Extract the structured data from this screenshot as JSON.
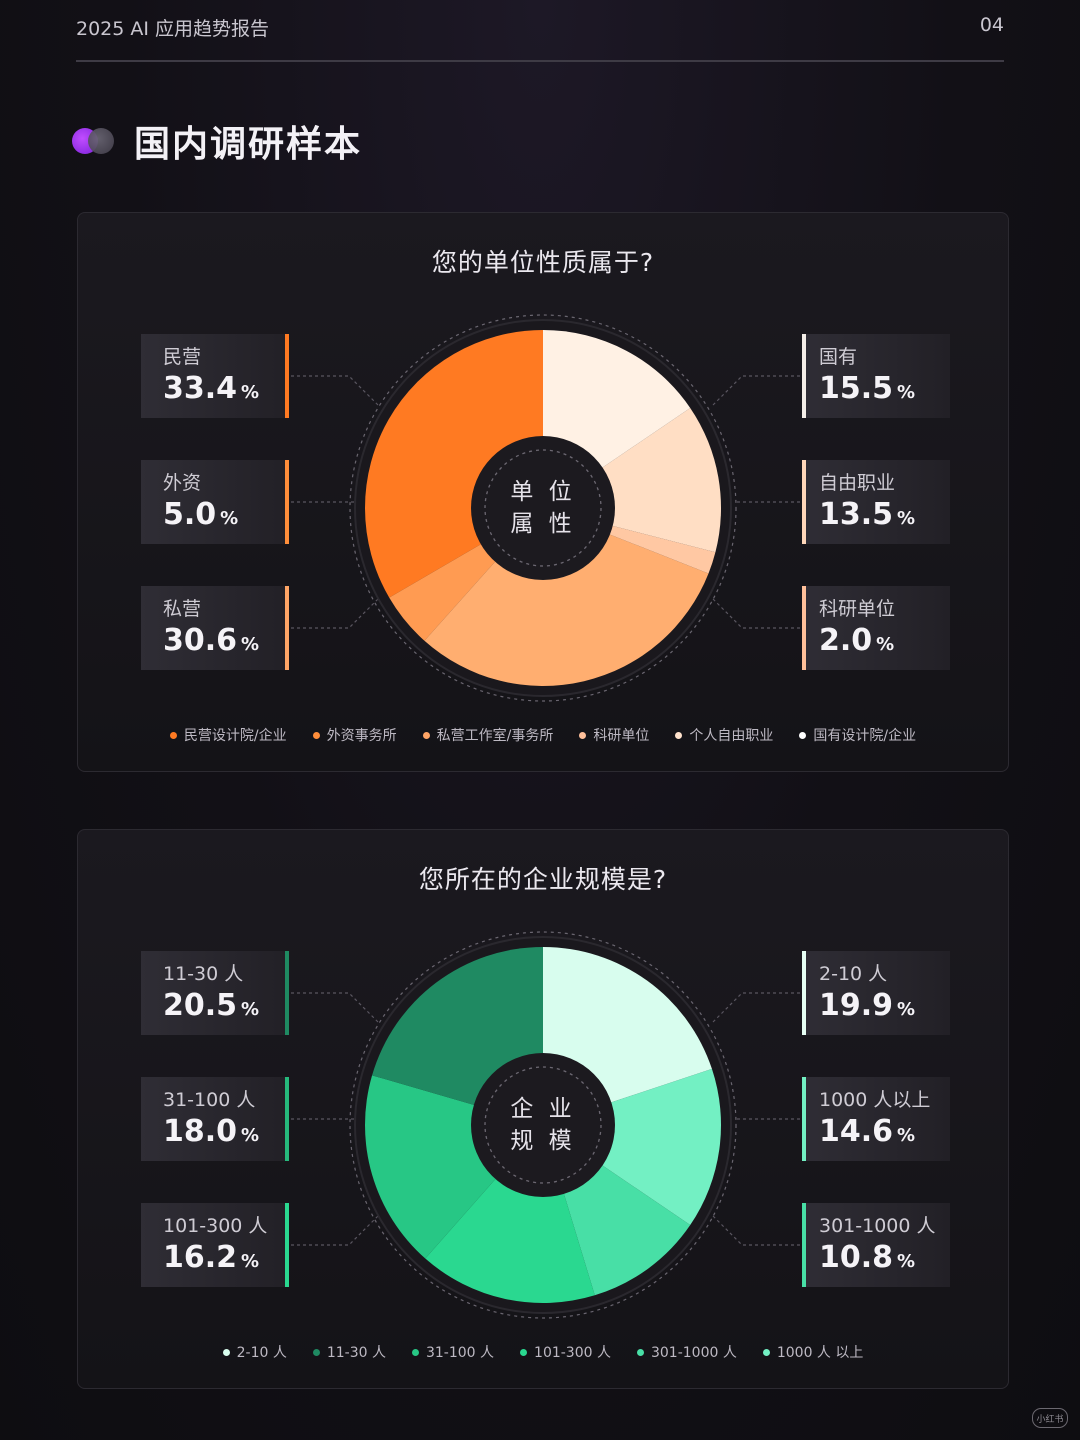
{
  "header": {
    "title": "2025 AI 应用趋势报告",
    "page_num": "04"
  },
  "section": {
    "title": "国内调研样本"
  },
  "watermark": "小红书",
  "colors": {
    "accent_orange": "#ff7a1f",
    "accent_green": "#2fd39a",
    "section_icon": "#a238f0"
  },
  "chart_data": [
    {
      "type": "pie",
      "title": "您的单位性质属于?",
      "center_label": [
        "单 位",
        "属 性"
      ],
      "categories": [
        "民营设计院/企业",
        "外资事务所",
        "私营工作室/事务所",
        "科研单位",
        "个人自由职业",
        "国有设计院/企业"
      ],
      "values": [
        33.4,
        5.0,
        30.6,
        2.0,
        13.5,
        15.5
      ],
      "colors": [
        "#ff7a22",
        "#ff9b52",
        "#ffae70",
        "#ffc8a3",
        "#ffdec4",
        "#fff1e4"
      ],
      "start_angle_deg": 270,
      "direction": "counterclockwise",
      "callouts": [
        {
          "label": "民营",
          "value": "33.4",
          "unit": "%",
          "side": "left",
          "bar": "#ff7a22"
        },
        {
          "label": "外资",
          "value": "5.0",
          "unit": "%",
          "side": "left",
          "bar": "#ff8e3a"
        },
        {
          "label": "私营",
          "value": "30.6",
          "unit": "%",
          "side": "left",
          "bar": "#ffa566"
        },
        {
          "label": "国有",
          "value": "15.5",
          "unit": "%",
          "side": "right",
          "bar": "#f4eee8"
        },
        {
          "label": "自由职业",
          "value": "13.5",
          "unit": "%",
          "side": "right",
          "bar": "#ffd7b9"
        },
        {
          "label": "科研单位",
          "value": "2.0",
          "unit": "%",
          "side": "right",
          "bar": "#ffc09a"
        }
      ],
      "legend": [
        {
          "label": "民营设计院/企业",
          "color": "#ff7a22"
        },
        {
          "label": "外资事务所",
          "color": "#ff8e3a"
        },
        {
          "label": "私营工作室/事务所",
          "color": "#ffa566"
        },
        {
          "label": "科研单位",
          "color": "#ffc09a"
        },
        {
          "label": "个人自由职业",
          "color": "#ffe2cc"
        },
        {
          "label": "国有设计院/企业",
          "color": "#ffffff"
        }
      ]
    },
    {
      "type": "pie",
      "title": "您所在的企业规模是?",
      "center_label": [
        "企 业",
        "规 模"
      ],
      "categories": [
        "2-10 人",
        "1000 人以上",
        "301-1000 人",
        "101-300 人",
        "31-100 人",
        "11-30 人"
      ],
      "values": [
        19.9,
        14.6,
        10.8,
        16.2,
        18.0,
        20.5
      ],
      "colors": [
        "#d8fdee",
        "#73f0c3",
        "#48dfa6",
        "#2ad890",
        "#27c785",
        "#1f8a62"
      ],
      "start_angle_deg": 270,
      "direction": "clockwise",
      "callouts": [
        {
          "label": "11-30 人",
          "value": "20.5",
          "unit": "%",
          "side": "left",
          "bar": "#1f8a62"
        },
        {
          "label": "31-100 人",
          "value": "18.0",
          "unit": "%",
          "side": "left",
          "bar": "#26b97c"
        },
        {
          "label": "101-300 人",
          "value": "16.2",
          "unit": "%",
          "side": "left",
          "bar": "#2ad890"
        },
        {
          "label": "2-10 人",
          "value": "19.9",
          "unit": "%",
          "side": "right",
          "bar": "#e6fff4"
        },
        {
          "label": "1000 人以上",
          "value": "14.6",
          "unit": "%",
          "side": "right",
          "bar": "#73f0c3"
        },
        {
          "label": "301-1000 人",
          "value": "10.8",
          "unit": "%",
          "side": "right",
          "bar": "#48dfa6"
        }
      ],
      "legend": [
        {
          "label": "2-10 人",
          "color": "#d8fdee"
        },
        {
          "label": "11-30 人",
          "color": "#1f8a62"
        },
        {
          "label": "31-100 人",
          "color": "#27c785"
        },
        {
          "label": "101-300 人",
          "color": "#2ad890"
        },
        {
          "label": "301-1000 人",
          "color": "#48dfa6"
        },
        {
          "label": "1000 人 以上",
          "color": "#73f0c3"
        }
      ]
    }
  ]
}
